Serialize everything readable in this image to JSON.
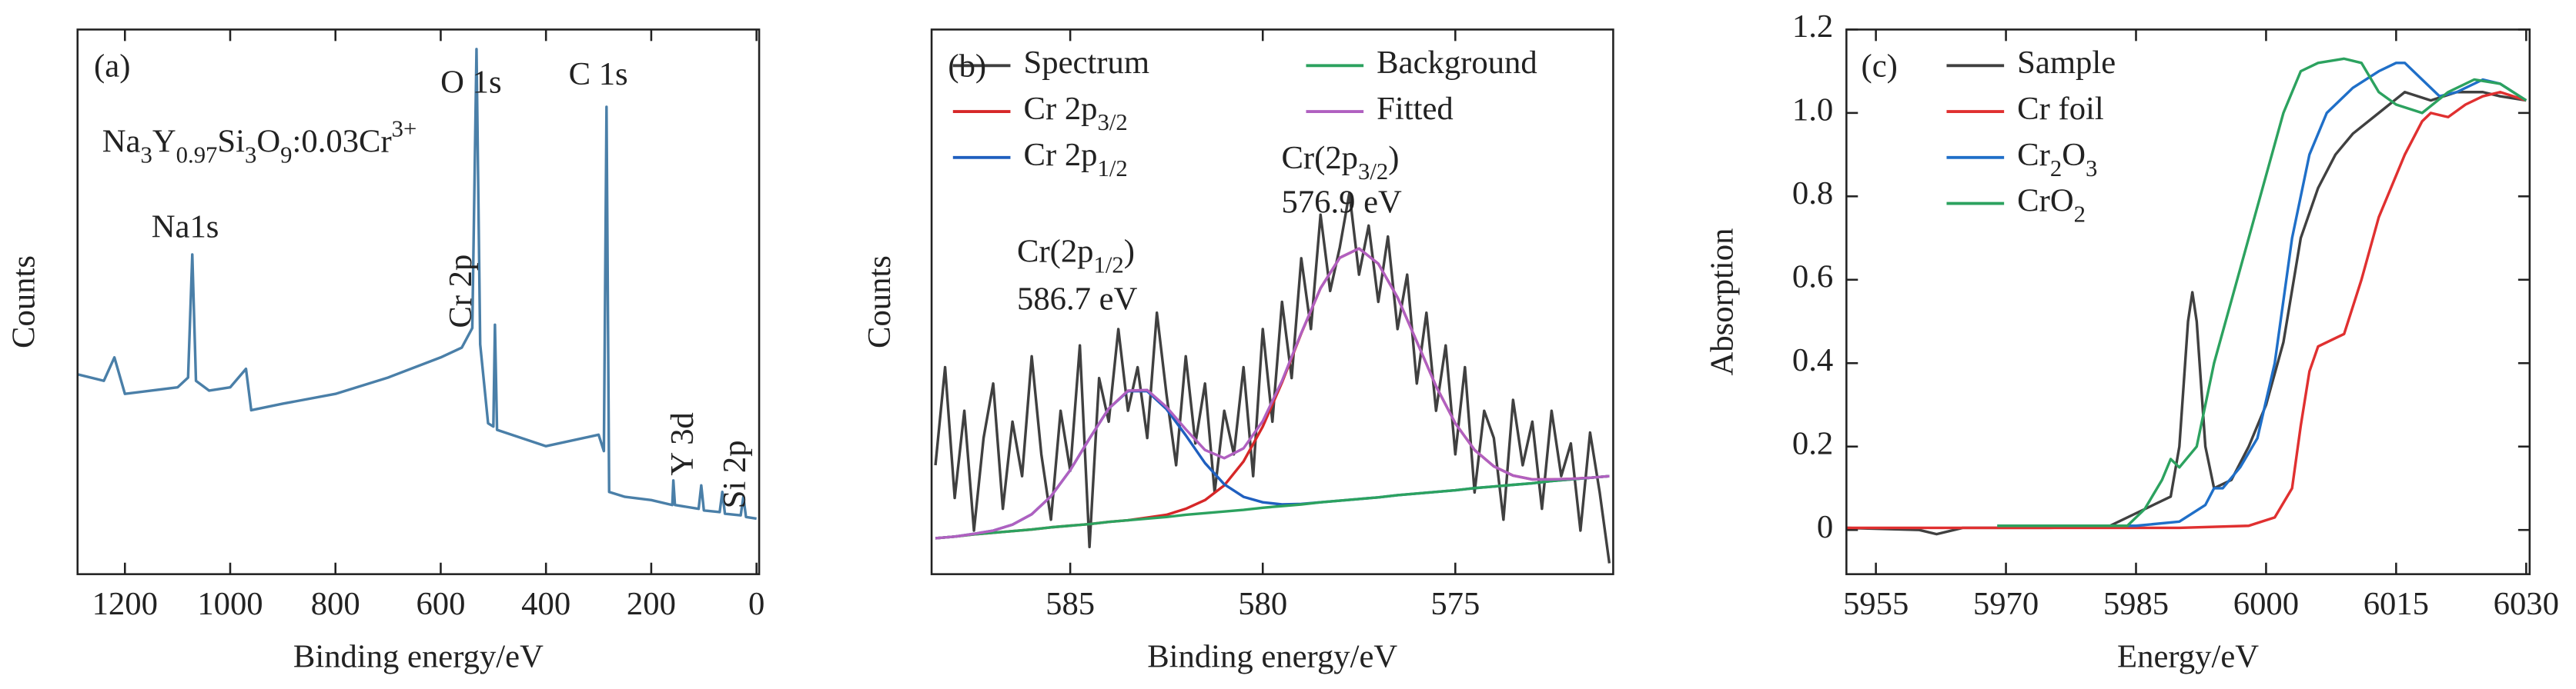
{
  "chart_data": [
    {
      "type": "line",
      "x_label": "Binding energy/eV",
      "y_label": "Counts",
      "xlim": [
        1290,
        -5
      ],
      "ylim": [
        0,
        100
      ],
      "xticks": [
        1200,
        1000,
        800,
        600,
        400,
        200,
        0
      ],
      "color": "#4a7fa8",
      "x": [
        1290,
        1240,
        1220,
        1200,
        1150,
        1100,
        1080,
        1072,
        1065,
        1040,
        1000,
        970,
        960,
        900,
        800,
        700,
        600,
        560,
        540,
        532,
        525,
        510,
        500,
        497,
        493,
        400,
        300,
        290,
        285,
        280,
        250,
        200,
        160,
        158,
        155,
        110,
        105,
        100,
        70,
        65,
        60,
        30,
        25,
        20,
        0
      ],
      "values": [
        36.7,
        35.5,
        39.8,
        33.1,
        33.7,
        34.3,
        36.1,
        58.7,
        35.5,
        33.7,
        34.3,
        37.7,
        30.1,
        31.3,
        33.1,
        36.1,
        39.8,
        41.6,
        45.2,
        96.4,
        42.2,
        27.7,
        27.1,
        45.8,
        26.5,
        23.5,
        25.6,
        22.6,
        85.8,
        15.1,
        14.2,
        13.6,
        12.7,
        17.2,
        12.7,
        12.0,
        16.3,
        11.7,
        11.4,
        15.1,
        11.1,
        10.8,
        14.2,
        10.5,
        10.2
      ],
      "annotations": [
        "(a)",
        [
          {
            "text": "Na"
          },
          {
            "text": "3",
            "sub": true
          },
          {
            "text": "Y"
          },
          {
            "text": "0.97",
            "sub": true
          },
          {
            "text": "Si"
          },
          {
            "text": "3",
            "sub": true
          },
          {
            "text": "O"
          },
          {
            "text": "9",
            "sub": true
          },
          {
            "text": ":0.03Cr"
          },
          {
            "text": "3+",
            "sup": true
          }
        ],
        "Na1s",
        "O 1s",
        "C 1s",
        "Cr 2p",
        "Y 3d",
        "Si 2p"
      ]
    },
    {
      "type": "line",
      "x_label": "Binding energy/eV",
      "y_label": "Counts",
      "xlim": [
        588.6,
        570.9
      ],
      "ylim": [
        0,
        100
      ],
      "xticks": [
        585,
        580,
        575
      ],
      "x": [
        588.5,
        588,
        587.5,
        587,
        586.5,
        586,
        585.5,
        585,
        584.5,
        584,
        583.5,
        583,
        582.5,
        582,
        581.5,
        581,
        580.5,
        580,
        579.5,
        579,
        578.5,
        578,
        577.5,
        577,
        576.5,
        576,
        575.5,
        575,
        574.5,
        574,
        573.5,
        573,
        572.5,
        572,
        571.5,
        571
      ],
      "series": [
        {
          "name": "Spectrum",
          "color": "#404040",
          "x": [
            588.5,
            588.25,
            588,
            587.75,
            587.5,
            587.25,
            587,
            586.75,
            586.5,
            586.25,
            586,
            585.75,
            585.5,
            585.25,
            585,
            584.75,
            584.5,
            584.25,
            584,
            583.75,
            583.5,
            583.25,
            583,
            582.75,
            582.5,
            582.25,
            582,
            581.75,
            581.5,
            581.25,
            581,
            580.75,
            580.5,
            580.25,
            580,
            579.75,
            579.5,
            579.25,
            579,
            578.75,
            578.5,
            578.25,
            578,
            577.75,
            577.5,
            577.25,
            577,
            576.75,
            576.5,
            576.25,
            576,
            575.75,
            575.5,
            575.25,
            575,
            574.75,
            574.5,
            574.25,
            574,
            573.75,
            573.5,
            573.25,
            573,
            572.75,
            572.5,
            572.25,
            572,
            571.75,
            571.5,
            571.25,
            571
          ],
          "values": [
            20,
            38,
            14,
            30,
            8,
            25,
            35,
            12,
            28,
            18,
            40,
            22,
            10,
            30,
            19,
            42,
            5,
            36,
            28,
            45,
            30,
            38,
            25,
            48,
            33,
            20,
            40,
            24,
            35,
            15,
            30,
            22,
            38,
            18,
            45,
            28,
            50,
            36,
            58,
            45,
            66,
            52,
            60,
            70,
            55,
            64,
            50,
            62,
            45,
            55,
            35,
            48,
            30,
            42,
            22,
            38,
            15,
            30,
            25,
            10,
            32,
            20,
            28,
            12,
            30,
            18,
            24,
            8,
            26,
            15,
            2
          ]
        },
        {
          "name": [
            {
              "text": "Cr 2p"
            },
            {
              "text": "3/2",
              "sub": true
            }
          ],
          "color": "#d62728",
          "values": [
            6.6,
            6.9,
            7.3,
            7.6,
            7.9,
            8.2,
            8.6,
            8.9,
            9.2,
            9.6,
            9.9,
            10.4,
            10.9,
            12.0,
            13.6,
            16.3,
            20.7,
            27.1,
            35.2,
            44.2,
            52.5,
            58.1,
            59.8,
            57.0,
            50.8,
            42.7,
            34.5,
            27.7,
            22.8,
            19.8,
            18.1,
            17.4,
            17.4,
            17.5,
            17.7,
            18.0
          ]
        },
        {
          "name": [
            {
              "text": "Cr 2p"
            },
            {
              "text": "1/2",
              "sub": true
            }
          ],
          "color": "#1f5fbf",
          "values": [
            6.6,
            6.9,
            7.4,
            8.0,
            9.1,
            11.0,
            14.3,
            19.1,
            24.9,
            30.4,
            33.6,
            33.6,
            30.3,
            25.5,
            20.4,
            16.5,
            14.2,
            13.2,
            12.8,
            12.9,
            13.2,
            13.5,
            13.8,
            14.1,
            14.5,
            14.8,
            15.1,
            15.4,
            15.8,
            16.1,
            16.4,
            16.7,
            17.1,
            17.4,
            17.7,
            18.0
          ]
        },
        {
          "name": "Background",
          "color": "#2ca25f",
          "values": [
            6.6,
            6.9,
            7.3,
            7.6,
            7.9,
            8.2,
            8.6,
            8.9,
            9.2,
            9.6,
            9.9,
            10.2,
            10.5,
            10.9,
            11.2,
            11.5,
            11.8,
            12.2,
            12.5,
            12.8,
            13.2,
            13.5,
            13.8,
            14.1,
            14.5,
            14.8,
            15.1,
            15.4,
            15.8,
            16.1,
            16.4,
            16.7,
            17.1,
            17.4,
            17.7,
            18.0
          ]
        },
        {
          "name": "Fitted",
          "color": "#b060c0",
          "values": [
            6.6,
            6.9,
            7.4,
            8.0,
            9.1,
            11.0,
            14.3,
            19.1,
            24.9,
            30.4,
            33.7,
            33.8,
            30.7,
            26.6,
            22.8,
            21.3,
            23.1,
            28.1,
            35.5,
            44.3,
            52.5,
            58.1,
            59.8,
            57.0,
            50.8,
            42.7,
            34.5,
            27.7,
            22.8,
            19.8,
            18.1,
            17.4,
            17.4,
            17.5,
            17.7,
            18.0
          ]
        }
      ],
      "annotations": [
        "(b)",
        [
          {
            "text": "Cr(2p"
          },
          {
            "text": "1/2",
            "sub": true
          },
          {
            "text": ")"
          }
        ],
        "586.7 eV",
        [
          {
            "text": "Cr(2p"
          },
          {
            "text": "3/2",
            "sub": true
          },
          {
            "text": ")"
          }
        ],
        "576.9 eV"
      ]
    },
    {
      "type": "line",
      "x_label": "Energy/eV",
      "y_label": "Absorption",
      "xlim": [
        5951.6,
        6030.4
      ],
      "ylim": [
        -0.106,
        1.2
      ],
      "xticks": [
        5955,
        5970,
        5985,
        6000,
        6015,
        6030
      ],
      "yticks": [
        0,
        0.2,
        0.4,
        0.6,
        0.8,
        {
          "value": 1,
          "label": "1.0"
        },
        1.2
      ],
      "series": [
        {
          "name": "Sample",
          "color": "#404040",
          "x": [
            5951.6,
            5960,
            5962,
            5965,
            5975,
            5982,
            5985,
            5987,
            5989,
            5990,
            5991,
            5991.5,
            5992,
            5993,
            5994,
            5996,
            5998,
            6000,
            6002,
            6004,
            6006,
            6008,
            6010,
            6013,
            6016,
            6019,
            6022,
            6025,
            6027,
            6030
          ],
          "values": [
            0.005,
            0.0,
            -0.01,
            0.005,
            0.005,
            0.01,
            0.04,
            0.06,
            0.08,
            0.2,
            0.5,
            0.57,
            0.5,
            0.2,
            0.1,
            0.12,
            0.2,
            0.3,
            0.45,
            0.7,
            0.82,
            0.9,
            0.95,
            1.0,
            1.05,
            1.03,
            1.05,
            1.05,
            1.04,
            1.03
          ]
        },
        {
          "name": "Cr foil",
          "color": "#e03030",
          "x": [
            5951.6,
            5970,
            5990,
            5998,
            6001,
            6003,
            6004,
            6005,
            6006,
            6008,
            6009,
            6011,
            6013,
            6016,
            6018,
            6019,
            6021,
            6023,
            6025,
            6027,
            6030
          ],
          "values": [
            0.005,
            0.005,
            0.005,
            0.01,
            0.03,
            0.1,
            0.25,
            0.38,
            0.44,
            0.46,
            0.47,
            0.6,
            0.75,
            0.9,
            0.98,
            1.0,
            0.99,
            1.02,
            1.04,
            1.05,
            1.03
          ]
        },
        {
          "name": [
            {
              "text": "Cr"
            },
            {
              "text": "2",
              "sub": true
            },
            {
              "text": "O"
            },
            {
              "text": "3",
              "sub": true
            }
          ],
          "color": "#1f6fc8",
          "x": [
            5969,
            5985,
            5990,
            5993,
            5994,
            5995,
            5997,
            5999,
            6001,
            6003,
            6005,
            6007,
            6010,
            6013,
            6015,
            6016,
            6018,
            6020,
            6022,
            6025,
            6027,
            6030
          ],
          "values": [
            0.01,
            0.01,
            0.02,
            0.06,
            0.1,
            0.1,
            0.15,
            0.22,
            0.4,
            0.7,
            0.9,
            1.0,
            1.06,
            1.1,
            1.12,
            1.12,
            1.08,
            1.04,
            1.05,
            1.08,
            1.07,
            1.03
          ]
        },
        {
          "name": [
            {
              "text": "CrO"
            },
            {
              "text": "2",
              "sub": true
            }
          ],
          "color": "#2ca25f",
          "x": [
            5969,
            5984,
            5986,
            5988,
            5989,
            5990,
            5992,
            5994,
            5996,
            5998,
            6000,
            6002,
            6004,
            6006,
            6009,
            6011,
            6013,
            6015,
            6018,
            6021,
            6024,
            6027,
            6030
          ],
          "values": [
            0.01,
            0.01,
            0.05,
            0.12,
            0.17,
            0.15,
            0.2,
            0.4,
            0.55,
            0.7,
            0.85,
            1.0,
            1.1,
            1.12,
            1.13,
            1.12,
            1.05,
            1.02,
            1.0,
            1.05,
            1.08,
            1.07,
            1.03
          ]
        }
      ],
      "annotations": [
        "(c)"
      ]
    }
  ]
}
